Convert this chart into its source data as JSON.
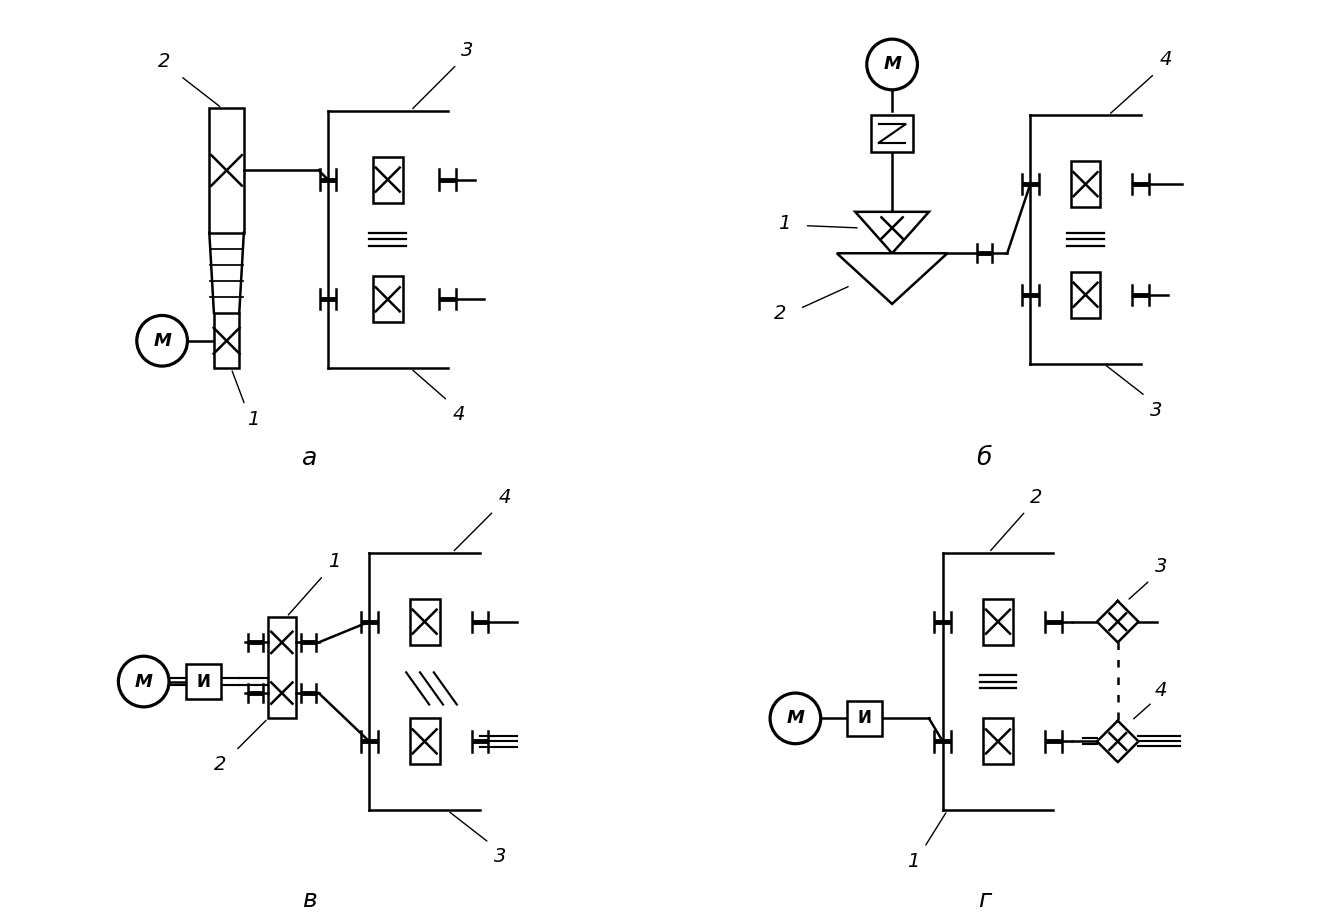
{
  "bg": "#ffffff",
  "lc": "#000000",
  "lw": 1.8,
  "lw_thick": 3.5,
  "lw_thin": 1.0,
  "fs_label": 18,
  "fs_num": 14,
  "fs_text": 13,
  "label_a": "a",
  "label_b": "б",
  "label_v": "в",
  "label_g": "г"
}
